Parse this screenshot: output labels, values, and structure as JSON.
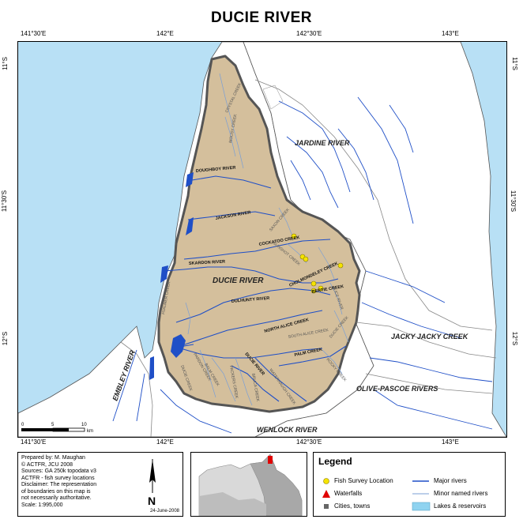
{
  "title": "DUCIE RIVER",
  "ticks": {
    "top": [
      "141°30'E",
      "142°E",
      "142°30'E",
      "143°E"
    ],
    "bottom": [
      "141°30'E",
      "142°E",
      "142°30'E",
      "143°E"
    ],
    "left": [
      "11°S",
      "11°30'S",
      "12°S"
    ],
    "right": [
      "11°S",
      "11°30'S",
      "12°S"
    ]
  },
  "colors": {
    "sea": "#b8e0f5",
    "catchment": "#d4bf9c",
    "boundary": "#555555",
    "major_river": "#1f4fc7",
    "minor_river": "#7a9fd6",
    "lake": "#8fd3f0",
    "fish": "#f5e400",
    "waterfall": "#e00000",
    "city": "#666666"
  },
  "basins": {
    "ducie": "DUCIE RIVER",
    "jardine": "JARDINE RIVER",
    "jacky": "JACKY JACKY CREEK",
    "olive": "OLIVE-PASCOE RIVERS",
    "embley": "EMBLEY RIVER",
    "wenlock": "WENLOCK RIVER"
  },
  "rivers": {
    "crystal": "CRYSTAL CREEK",
    "mousy": "MOUSY CREEK",
    "doughboy": "DOUGHBOY RIVER",
    "jackson": "JACKSON RIVER",
    "saxon": "SAXON CREEK",
    "cockatoo": "COCKATOO CREEK",
    "gunshot": "GUNSHOT CREEK",
    "skardon": "SKARDON RIVER",
    "cholmondeley": "CHOLMONDELEY CREEK",
    "bertie": "BERTIE CREEK",
    "dulhunty": "DULHUNTY RIVER",
    "north_alice": "NORTH ALICE CREEK",
    "south_alice": "SOUTH ALICE CREEK",
    "palm": "PALM CREEK",
    "rocky": "ROCKY CREEK",
    "sefton": "SEFTON CREEK",
    "bruca": "BRUCA CREEK",
    "alice": "ALICE RIVER",
    "pardon": "PARDON CREEK",
    "balm": "BALM CREEK",
    "packers": "PACKERS CREEK",
    "ducie_cr": "DUCIE CREEK",
    "ducie_r": "DUCIE RIVER",
    "waterhaugh": "WATERHAUGH CREEK",
    "hjalmer": "HJALMER CREEK"
  },
  "scale_bar": {
    "labels": [
      "0",
      "5",
      "10"
    ],
    "unit": "km"
  },
  "info": {
    "lines": [
      "Prepared by: M. Maughan",
      "©    ACTFR,   JCU   2008",
      "Sources: GA 250k topodata v3",
      "ACTFR - fish survey locations",
      "Disclaimer: The representation",
      "of boundaries on this map is",
      "not necessarily authoritative.",
      "Scale:  1:995,000"
    ],
    "date": "24-June-2008",
    "north_letter": "N"
  },
  "legend": {
    "title": "Legend",
    "items": [
      {
        "label": "Fish Survey Location",
        "symbol": "fish"
      },
      {
        "label": "Waterfalls",
        "symbol": "waterfall"
      },
      {
        "label": "Cities, towns",
        "symbol": "city"
      },
      {
        "label": "Major rivers",
        "symbol": "major"
      },
      {
        "label": "Minor named rivers",
        "symbol": "minor"
      },
      {
        "label": "Lakes & reservoirs",
        "symbol": "lake"
      }
    ]
  }
}
